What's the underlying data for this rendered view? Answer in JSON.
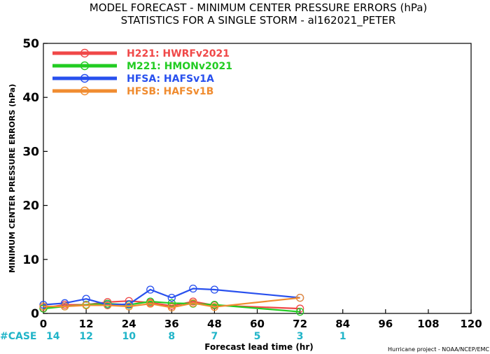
{
  "chart_data": {
    "type": "line",
    "title": "MODEL FORECAST - MINIMUM CENTER PRESSURE ERRORS (hPa)",
    "subtitle": "STATISTICS FOR A SINGLE STORM - al162021_PETER",
    "xlabel": "Forecast lead time (hr)",
    "ylabel": "MINIMUM CENTER PRESSURE ERRORS (hPa)",
    "xlim": [
      0,
      120
    ],
    "ylim": [
      0,
      50
    ],
    "xticks": [
      0,
      12,
      24,
      36,
      48,
      60,
      72,
      84,
      96,
      108,
      120
    ],
    "yticks": [
      0,
      10,
      20,
      30,
      40,
      50
    ],
    "grid": false,
    "legend_position": "top-left",
    "series": [
      {
        "name": "H221: HWRFv2021",
        "color": "#f04848",
        "x": [
          0,
          6,
          12,
          18,
          24,
          30,
          36,
          42,
          48,
          72
        ],
        "y": [
          1.0,
          1.6,
          1.6,
          2.1,
          2.3,
          2.0,
          1.4,
          2.2,
          1.5,
          0.9
        ]
      },
      {
        "name": "M221: HMONv2021",
        "color": "#22cc22",
        "x": [
          0,
          6,
          12,
          18,
          24,
          30,
          36,
          42,
          48,
          72
        ],
        "y": [
          0.9,
          1.3,
          1.6,
          1.8,
          1.6,
          2.2,
          1.9,
          1.8,
          1.6,
          0.3
        ]
      },
      {
        "name": "HFSA: HAFSv1A",
        "color": "#2850ee",
        "x": [
          0,
          6,
          12,
          18,
          24,
          30,
          36,
          42,
          48,
          72
        ],
        "y": [
          1.6,
          1.9,
          2.7,
          1.6,
          1.7,
          4.4,
          2.9,
          4.6,
          4.4,
          2.9
        ]
      },
      {
        "name": "HFSB: HAFSv1B",
        "color": "#f08c30",
        "x": [
          0,
          6,
          12,
          18,
          24,
          30,
          36,
          42,
          48,
          72
        ],
        "y": [
          1.3,
          1.3,
          1.5,
          1.5,
          1.3,
          1.8,
          1.1,
          1.9,
          1.2,
          2.9
        ]
      }
    ],
    "case_label": "#CASE",
    "case_counts": [
      {
        "x": 0,
        "count": "14"
      },
      {
        "x": 12,
        "count": "12"
      },
      {
        "x": 24,
        "count": "10"
      },
      {
        "x": 36,
        "count": "8"
      },
      {
        "x": 48,
        "count": "7"
      },
      {
        "x": 60,
        "count": "5"
      },
      {
        "x": 72,
        "count": "3"
      },
      {
        "x": 84,
        "count": "1"
      }
    ],
    "case_color": "#20b4c8",
    "credit": "Hurricane project - NOAA/NCEP/EMC"
  }
}
